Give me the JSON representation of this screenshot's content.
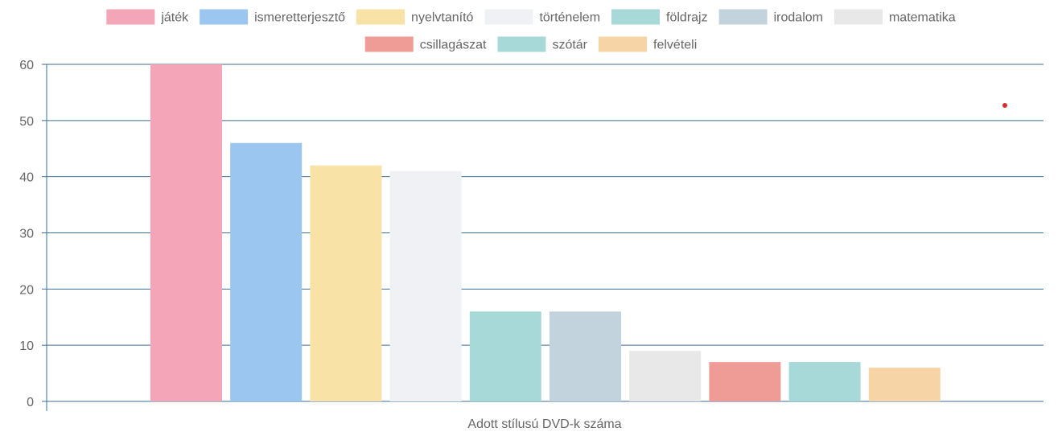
{
  "chart_data": {
    "type": "bar",
    "title": "",
    "xlabel": "Adott stílusú DVD-k száma",
    "ylabel": "",
    "ylim": [
      0,
      60
    ],
    "yticks": [
      0,
      10,
      20,
      30,
      40,
      50,
      60
    ],
    "grid": true,
    "legend_position": "top",
    "series": [
      {
        "name": "játék",
        "value": 60,
        "color": "#f4a6b8"
      },
      {
        "name": "ismeretterjesztő",
        "value": 46,
        "color": "#9bc6f0"
      },
      {
        "name": "nyelvtanító",
        "value": 42,
        "color": "#f8e2a6"
      },
      {
        "name": "történelem",
        "value": 41,
        "color": "#eff1f4"
      },
      {
        "name": "földrajz",
        "value": 16,
        "color": "#a6d9d8"
      },
      {
        "name": "irodalom",
        "value": 16,
        "color": "#c3d3de"
      },
      {
        "name": "matematika",
        "value": 9,
        "color": "#e8e8e9"
      },
      {
        "name": "csillagászat",
        "value": 7,
        "color": "#ef9b96"
      },
      {
        "name": "szótár",
        "value": 7,
        "color": "#a6d9d8"
      },
      {
        "name": "felvételi",
        "value": 6,
        "color": "#f6d4a6"
      }
    ],
    "grid_color": "#3d6e99",
    "marker_color": "#d62d2d"
  }
}
